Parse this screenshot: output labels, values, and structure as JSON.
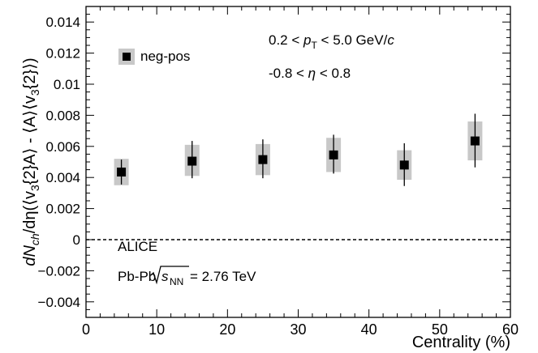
{
  "chart_data": {
    "type": "scatter",
    "xlabel": "Centrality (%)",
    "ylabel_parts": {
      "a": "dN",
      "b": "ch",
      "c": "/dη(⟨v",
      "d": "3",
      "e": "{2}A⟩ - ⟨A⟩⟨v",
      "f": "3",
      "g": "{2}⟩)"
    },
    "xlim": [
      0,
      60
    ],
    "ylim": [
      -0.005,
      0.015
    ],
    "x_ticks": [
      0,
      10,
      20,
      30,
      40,
      50,
      60
    ],
    "x_tick_labels": [
      "0",
      "10",
      "20",
      "30",
      "40",
      "50",
      "60"
    ],
    "y_ticks": [
      -0.004,
      -0.002,
      0,
      0.002,
      0.004,
      0.006,
      0.008,
      0.01,
      0.012,
      0.014
    ],
    "y_tick_labels": [
      "−0.004",
      "−0.002",
      "0",
      "0.002",
      "0.004",
      "0.006",
      "0.008",
      "0.01",
      "0.012",
      "0.014"
    ],
    "reference_line_y": 0,
    "legend": {
      "position": "top-left",
      "label": "neg-pos"
    },
    "series": [
      {
        "name": "neg-pos",
        "marker": "square",
        "color": "#000000",
        "syst_color": "#c8c8c8",
        "points": [
          {
            "x": 5,
            "y": 0.00435,
            "stat_low": 0.00355,
            "stat_high": 0.00515,
            "syst_low": 0.0035,
            "syst_high": 0.0052
          },
          {
            "x": 15,
            "y": 0.00505,
            "stat_low": 0.00395,
            "stat_high": 0.00635,
            "syst_low": 0.0041,
            "syst_high": 0.0061
          },
          {
            "x": 25,
            "y": 0.00515,
            "stat_low": 0.00395,
            "stat_high": 0.00645,
            "syst_low": 0.00415,
            "syst_high": 0.00615
          },
          {
            "x": 35,
            "y": 0.00545,
            "stat_low": 0.00425,
            "stat_high": 0.00675,
            "syst_low": 0.00435,
            "syst_high": 0.00655
          },
          {
            "x": 45,
            "y": 0.0048,
            "stat_low": 0.00345,
            "stat_high": 0.0062,
            "syst_low": 0.00385,
            "syst_high": 0.00575
          },
          {
            "x": 55,
            "y": 0.00635,
            "stat_low": 0.00465,
            "stat_high": 0.0081,
            "syst_low": 0.0051,
            "syst_high": 0.0076
          }
        ]
      }
    ],
    "annotations": {
      "pt_range": {
        "a": "0.2 < ",
        "b": "p",
        "c": "T",
        "d": " < 5.0 GeV/",
        "e": "c"
      },
      "eta_range": {
        "a": "-0.8 < ",
        "b": "η",
        "c": " < 0.8"
      },
      "experiment": "ALICE",
      "system": {
        "a": "Pb-Pb ",
        "b": "s",
        "c": "NN",
        "d": " = 2.76 TeV"
      }
    }
  }
}
